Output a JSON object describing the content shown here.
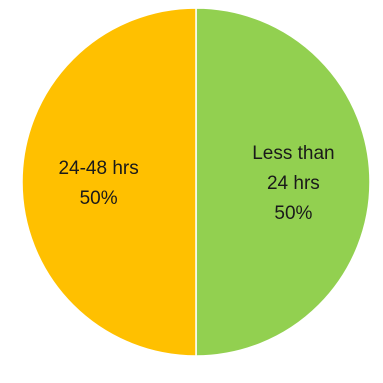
{
  "chart_data": {
    "type": "pie",
    "title": "",
    "slices": [
      {
        "label_lines": [
          "Less than",
          "24 hrs"
        ],
        "value": 50,
        "percent_label": "50%",
        "color": "#92D050"
      },
      {
        "label_lines": [
          "24-48  hrs"
        ],
        "value": 50,
        "percent_label": "50%",
        "color": "#FFC000"
      }
    ],
    "legend": "none"
  }
}
